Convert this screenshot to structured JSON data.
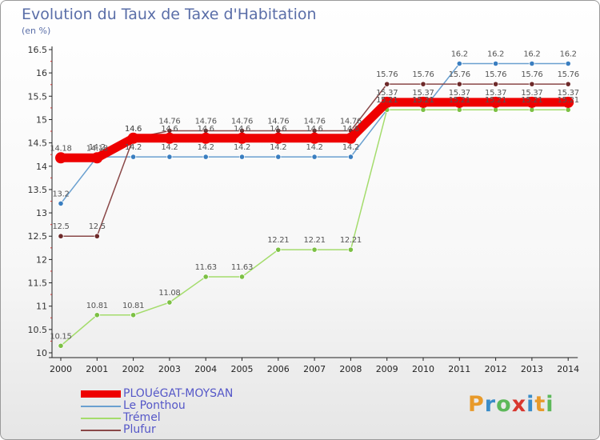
{
  "title": "Evolution du Taux de Taxe d'Habitation",
  "unit": "(en %)",
  "logo": {
    "text": "Proxiti",
    "colors": [
      "#e89a2a",
      "#3a8cc8",
      "#5db85a",
      "#d8372f",
      "#3a8cc8",
      "#e89a2a",
      "#5db85a"
    ]
  },
  "chart_data": {
    "type": "line",
    "title": "Evolution du Taux de Taxe d'Habitation",
    "ylabel": "(en %)",
    "xlabel": "",
    "ylim": [
      10,
      16.5
    ],
    "yticks": [
      10,
      10.5,
      11,
      11.5,
      12,
      12.5,
      13,
      13.5,
      14,
      14.5,
      15,
      15.5,
      16,
      16.5
    ],
    "ytick_labels": [
      "10",
      "10.5",
      "11",
      "11.5",
      "12",
      "12.5",
      "13",
      "13.5",
      "14",
      "14.5",
      "15",
      "15.5",
      "16",
      "16.5"
    ],
    "grid": false,
    "categories": [
      "2000",
      "2001",
      "2002",
      "2003",
      "2004",
      "2005",
      "2006",
      "2007",
      "2008",
      "2009",
      "2010",
      "2011",
      "2012",
      "2013",
      "2014"
    ],
    "series": [
      {
        "name": "PLOUéGAT-MOYSAN",
        "color": "#ee0000",
        "thick": true,
        "values": [
          14.18,
          14.18,
          14.6,
          14.6,
          14.6,
          14.6,
          14.6,
          14.6,
          14.6,
          15.37,
          15.37,
          15.37,
          15.37,
          15.37,
          15.37
        ],
        "labels": [
          "14.18",
          "14.18",
          "14.6",
          "14.6",
          "14.6",
          "14.6",
          "14.6",
          "14.6",
          "14.6",
          "15.37",
          "15.37",
          "15.37",
          "15.37",
          "15.37",
          "15.37"
        ]
      },
      {
        "name": "Le Ponthou",
        "color": "#6aa0d0",
        "marker": "#3a7ec0",
        "values": [
          13.2,
          14.2,
          14.2,
          14.2,
          14.2,
          14.2,
          14.2,
          14.2,
          14.2,
          15.21,
          15.21,
          16.2,
          16.2,
          16.2,
          16.2
        ],
        "labels": [
          "13.2",
          "14.2",
          "14.2",
          "14.2",
          "14.2",
          "14.2",
          "14.2",
          "14.2",
          "14.2",
          "15.21",
          "15.21",
          "16.2",
          "16.2",
          "16.2",
          "16.2"
        ]
      },
      {
        "name": "Trémel",
        "color": "#a4dc6c",
        "marker": "#7cc044",
        "values": [
          10.15,
          10.81,
          10.81,
          11.08,
          11.63,
          11.63,
          12.21,
          12.21,
          12.21,
          15.21,
          15.21,
          15.21,
          15.21,
          15.21,
          15.21
        ],
        "labels": [
          "10.15",
          "10.81",
          "10.81",
          "11.08",
          "11.63",
          "11.63",
          "12.21",
          "12.21",
          "12.21",
          "15.21",
          "15.21",
          "15.21",
          "15.21",
          "15.21",
          "15.21"
        ]
      },
      {
        "name": "Plufur",
        "color": "#8a4848",
        "marker": "#6e2a2a",
        "values": [
          12.5,
          12.5,
          14.6,
          14.76,
          14.76,
          14.76,
          14.76,
          14.76,
          14.76,
          15.76,
          15.76,
          15.76,
          15.76,
          15.76,
          15.76
        ],
        "labels": [
          "12.5",
          "12.5",
          "14.6",
          "14.76",
          "14.76",
          "14.76",
          "14.76",
          "14.76",
          "14.76",
          "15.76",
          "15.76",
          "15.76",
          "15.76",
          "15.76",
          "15.76"
        ]
      }
    ],
    "legend_position": "bottom-left"
  }
}
